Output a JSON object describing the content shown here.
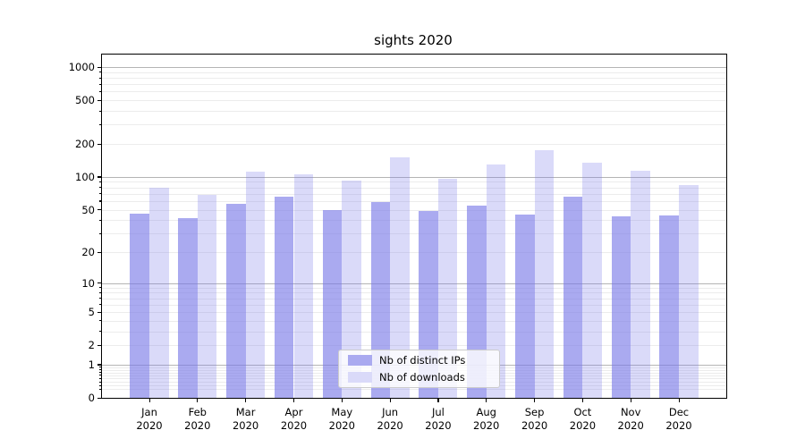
{
  "chart_data": {
    "type": "bar",
    "title": "sights 2020",
    "categories": [
      "Jan",
      "Feb",
      "Mar",
      "Apr",
      "May",
      "Jun",
      "Jul",
      "Aug",
      "Sep",
      "Oct",
      "Nov",
      "Dec"
    ],
    "category_year": "2020",
    "series": [
      {
        "name": "Nb of distinct IPs",
        "color": "#aaaaf0",
        "fill": "rgba(121,121,232,0.63)",
        "values": [
          46,
          42,
          57,
          66,
          50,
          59,
          49,
          54,
          45,
          66,
          43,
          44
        ]
      },
      {
        "name": "Nb of downloads",
        "color": "#dadaf9",
        "fill": "rgba(121,121,232,0.28)",
        "values": [
          79,
          69,
          112,
          106,
          93,
          152,
          97,
          129,
          177,
          136,
          114,
          84
        ]
      }
    ],
    "y_scale": "log1p",
    "ylim": [
      0,
      1300
    ],
    "y_ticks": [
      0,
      1,
      2,
      5,
      10,
      20,
      50,
      100,
      200,
      500,
      1000
    ],
    "y_minor_subs": [
      2,
      3,
      4,
      5,
      6,
      7,
      8,
      9
    ],
    "grid": true,
    "legend_position": "lower center",
    "colors": {
      "major_grid": "#b4b4b4",
      "minor_grid": "#ececec",
      "axis": "#000000",
      "text": "#000000"
    }
  }
}
